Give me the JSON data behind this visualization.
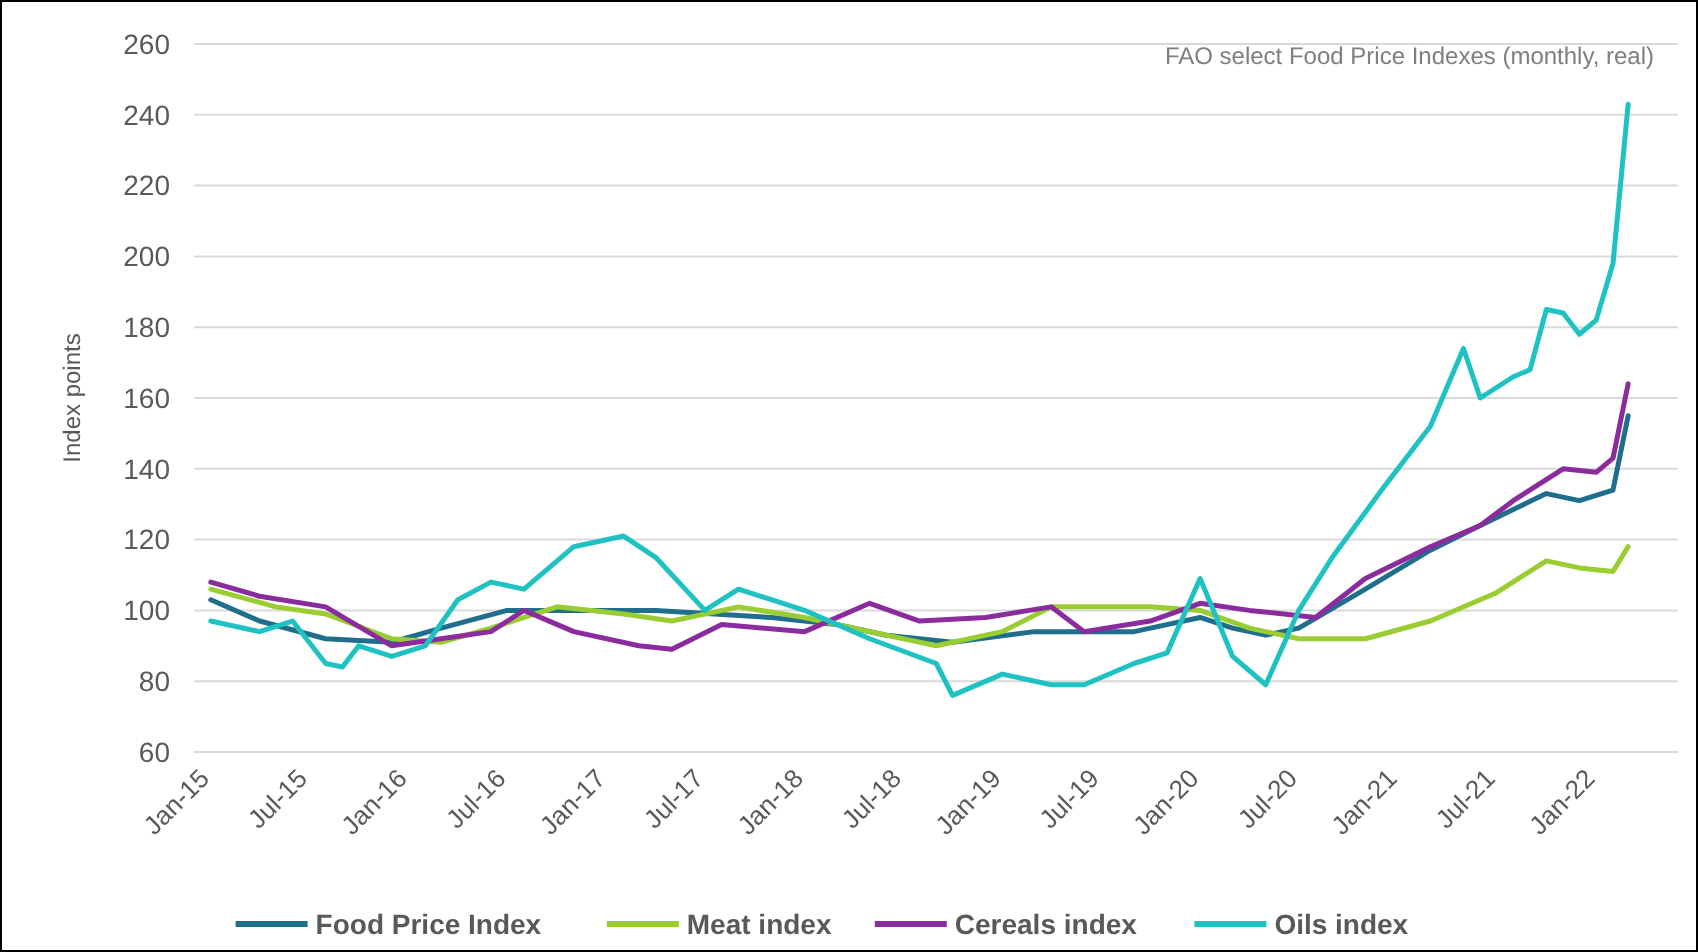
{
  "chart_data": {
    "type": "line",
    "title": "FAO select Food Price Indexes (monthly, real)",
    "ylabel": "Index points",
    "ylim": [
      60,
      260
    ],
    "yticks": [
      60,
      80,
      100,
      120,
      140,
      160,
      180,
      200,
      220,
      240,
      260
    ],
    "xlim": [
      "2014-12",
      "2022-06"
    ],
    "xticks": [
      {
        "value": "2015-01",
        "label": "Jan-15"
      },
      {
        "value": "2015-07",
        "label": "Jul-15"
      },
      {
        "value": "2016-01",
        "label": "Jan-16"
      },
      {
        "value": "2016-07",
        "label": "Jul-16"
      },
      {
        "value": "2017-01",
        "label": "Jan-17"
      },
      {
        "value": "2017-07",
        "label": "Jul-17"
      },
      {
        "value": "2018-01",
        "label": "Jan-18"
      },
      {
        "value": "2018-07",
        "label": "Jul-18"
      },
      {
        "value": "2019-01",
        "label": "Jan-19"
      },
      {
        "value": "2019-07",
        "label": "Jul-19"
      },
      {
        "value": "2020-01",
        "label": "Jan-20"
      },
      {
        "value": "2020-07",
        "label": "Jul-20"
      },
      {
        "value": "2021-01",
        "label": "Jan-21"
      },
      {
        "value": "2021-07",
        "label": "Jul-21"
      },
      {
        "value": "2022-01",
        "label": "Jan-22"
      }
    ],
    "grid": "y",
    "legend": "bottom",
    "marker": "none",
    "line_style": "solid",
    "series": [
      {
        "name": "Food Price Index",
        "color": "#1f6e8c",
        "x": [
          "2015-01",
          "2015-04",
          "2015-08",
          "2015-12",
          "2016-03",
          "2016-07",
          "2016-11",
          "2017-04",
          "2017-11",
          "2018-03",
          "2018-06",
          "2018-10",
          "2019-03",
          "2019-09",
          "2020-01",
          "2020-03",
          "2020-05",
          "2020-07",
          "2020-11",
          "2021-03",
          "2021-06",
          "2021-10",
          "2021-12",
          "2022-02",
          "2022-03"
        ],
        "values": [
          103,
          97,
          92,
          91,
          95,
          100,
          100,
          100,
          98,
          96,
          93,
          91,
          94,
          94,
          98,
          95,
          93,
          95,
          106,
          117,
          124,
          133,
          131,
          134,
          155
        ]
      },
      {
        "name": "Meat index",
        "color": "#9acd32",
        "x": [
          "2015-01",
          "2015-05",
          "2015-08",
          "2015-12",
          "2016-03",
          "2016-06",
          "2016-10",
          "2017-02",
          "2017-05",
          "2017-09",
          "2018-01",
          "2018-05",
          "2018-09",
          "2019-01",
          "2019-04",
          "2019-06",
          "2019-10",
          "2020-01",
          "2020-04",
          "2020-07",
          "2020-11",
          "2021-03",
          "2021-07",
          "2021-10",
          "2021-12",
          "2022-02",
          "2022-03"
        ],
        "values": [
          106,
          101,
          99,
          92,
          91,
          95,
          101,
          99,
          97,
          101,
          98,
          94,
          90,
          94,
          101,
          101,
          101,
          100,
          95,
          92,
          92,
          97,
          105,
          114,
          112,
          111,
          118
        ]
      },
      {
        "name": "Cereals index",
        "color": "#8b2c9e",
        "x": [
          "2015-01",
          "2015-04",
          "2015-08",
          "2015-12",
          "2016-03",
          "2016-06",
          "2016-08",
          "2016-11",
          "2017-03",
          "2017-05",
          "2017-08",
          "2018-01",
          "2018-05",
          "2018-08",
          "2018-12",
          "2019-04",
          "2019-06",
          "2019-10",
          "2020-01",
          "2020-04",
          "2020-08",
          "2020-11",
          "2021-03",
          "2021-06",
          "2021-08",
          "2021-11",
          "2022-01",
          "2022-02",
          "2022-03"
        ],
        "values": [
          108,
          104,
          101,
          90,
          92,
          94,
          100,
          94,
          90,
          89,
          96,
          94,
          102,
          97,
          98,
          101,
          94,
          97,
          102,
          100,
          98,
          109,
          118,
          124,
          131,
          140,
          139,
          143,
          164
        ]
      },
      {
        "name": "Oils index",
        "color": "#1fc2c2",
        "x": [
          "2015-01",
          "2015-04",
          "2015-06",
          "2015-08",
          "2015-09",
          "2015-10",
          "2015-12",
          "2016-02",
          "2016-04",
          "2016-06",
          "2016-08",
          "2016-11",
          "2017-02",
          "2017-04",
          "2017-07",
          "2017-09",
          "2018-01",
          "2018-05",
          "2018-09",
          "2018-10",
          "2019-01",
          "2019-04",
          "2019-06",
          "2019-09",
          "2019-11",
          "2020-01",
          "2020-03",
          "2020-05",
          "2020-07",
          "2020-09",
          "2020-12",
          "2021-03",
          "2021-05",
          "2021-06",
          "2021-08",
          "2021-09",
          "2021-10",
          "2021-11",
          "2021-12",
          "2022-01",
          "2022-02",
          "2022-03"
        ],
        "values": [
          97,
          94,
          97,
          85,
          84,
          90,
          87,
          90,
          103,
          108,
          106,
          118,
          121,
          115,
          100,
          106,
          100,
          92,
          85,
          76,
          82,
          79,
          79,
          85,
          88,
          109,
          87,
          79,
          100,
          115,
          134,
          152,
          174,
          160,
          166,
          168,
          185,
          184,
          178,
          182,
          198,
          243
        ]
      }
    ]
  }
}
